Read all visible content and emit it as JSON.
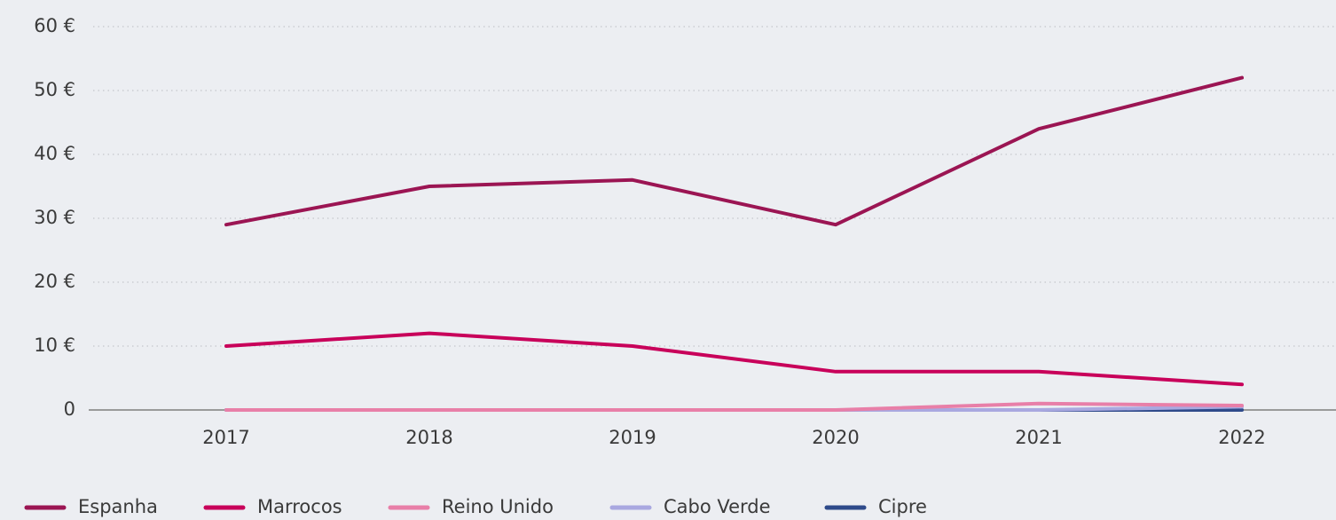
{
  "chart_data": {
    "type": "line",
    "categories": [
      "2017",
      "2018",
      "2019",
      "2020",
      "2021",
      "2022"
    ],
    "series": [
      {
        "name": "Espanha",
        "color": "#9b1553",
        "values": [
          29,
          35,
          36,
          29,
          44,
          52
        ]
      },
      {
        "name": "Marrocos",
        "color": "#c8005a",
        "values": [
          10,
          12,
          10,
          6,
          6,
          4
        ]
      },
      {
        "name": "Reino Unido",
        "color": "#e87fa8",
        "values": [
          0,
          0,
          0,
          0,
          1,
          0.7
        ]
      },
      {
        "name": "Cabo Verde",
        "color": "#a9a8e0",
        "values": [
          0,
          0,
          0,
          0,
          0,
          0.5
        ]
      },
      {
        "name": "Cipre",
        "color": "#2e4a8a",
        "values": [
          0,
          0,
          0,
          0,
          0,
          0
        ]
      }
    ],
    "ylim": [
      0,
      60
    ],
    "yticks": [
      0,
      {
        "value": 10,
        "label": "10 €"
      },
      {
        "value": 20,
        "label": "20 €"
      },
      {
        "value": 30,
        "label": "30 €"
      },
      {
        "value": 40,
        "label": "40 €"
      },
      {
        "value": 50,
        "label": "50 €"
      },
      {
        "value": 60,
        "label": "60 €"
      }
    ],
    "grid": true
  }
}
